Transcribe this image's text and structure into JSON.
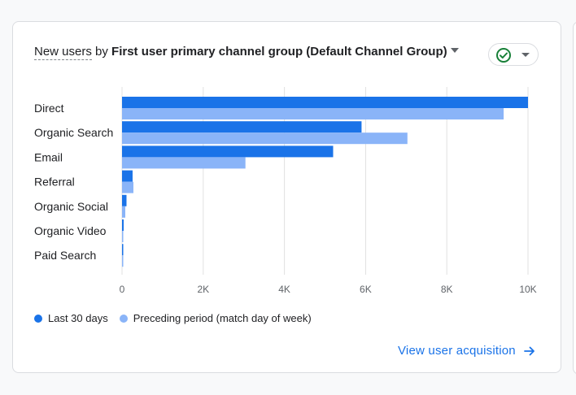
{
  "header": {
    "metric_label": "New users",
    "by_label": "by",
    "dimension_label": "First user primary channel group (Default Channel Group)"
  },
  "colors": {
    "current": "#1a73e8",
    "previous": "#8ab4f8",
    "grid": "#e0e0e0",
    "link": "#1a73e8",
    "check": "#188038"
  },
  "icons": {
    "status": "check-circle-icon",
    "status_menu": "chevron-down-icon",
    "link_arrow": "arrow-right-icon"
  },
  "chart_data": {
    "type": "bar",
    "orientation": "horizontal",
    "categories": [
      "Direct",
      "Organic Search",
      "Email",
      "Referral",
      "Organic Social",
      "Organic Video",
      "Paid Search"
    ],
    "series": [
      {
        "name": "Last 30 days",
        "values": [
          10000,
          5900,
          5200,
          260,
          110,
          40,
          30
        ]
      },
      {
        "name": "Preceding period (match day of week)",
        "values": [
          9400,
          7030,
          3040,
          280,
          80,
          20,
          20
        ]
      }
    ],
    "xlim": [
      0,
      10000
    ],
    "xticks": [
      0,
      2000,
      4000,
      6000,
      8000,
      10000
    ],
    "xtick_labels": [
      "0",
      "2K",
      "4K",
      "6K",
      "8K",
      "10K"
    ],
    "grid": true,
    "legend_position": "bottom-left"
  },
  "legend": {
    "current_label": "Last 30 days",
    "previous_label": "Preceding period (match day of week)"
  },
  "footer": {
    "link_label": "View user acquisition"
  }
}
